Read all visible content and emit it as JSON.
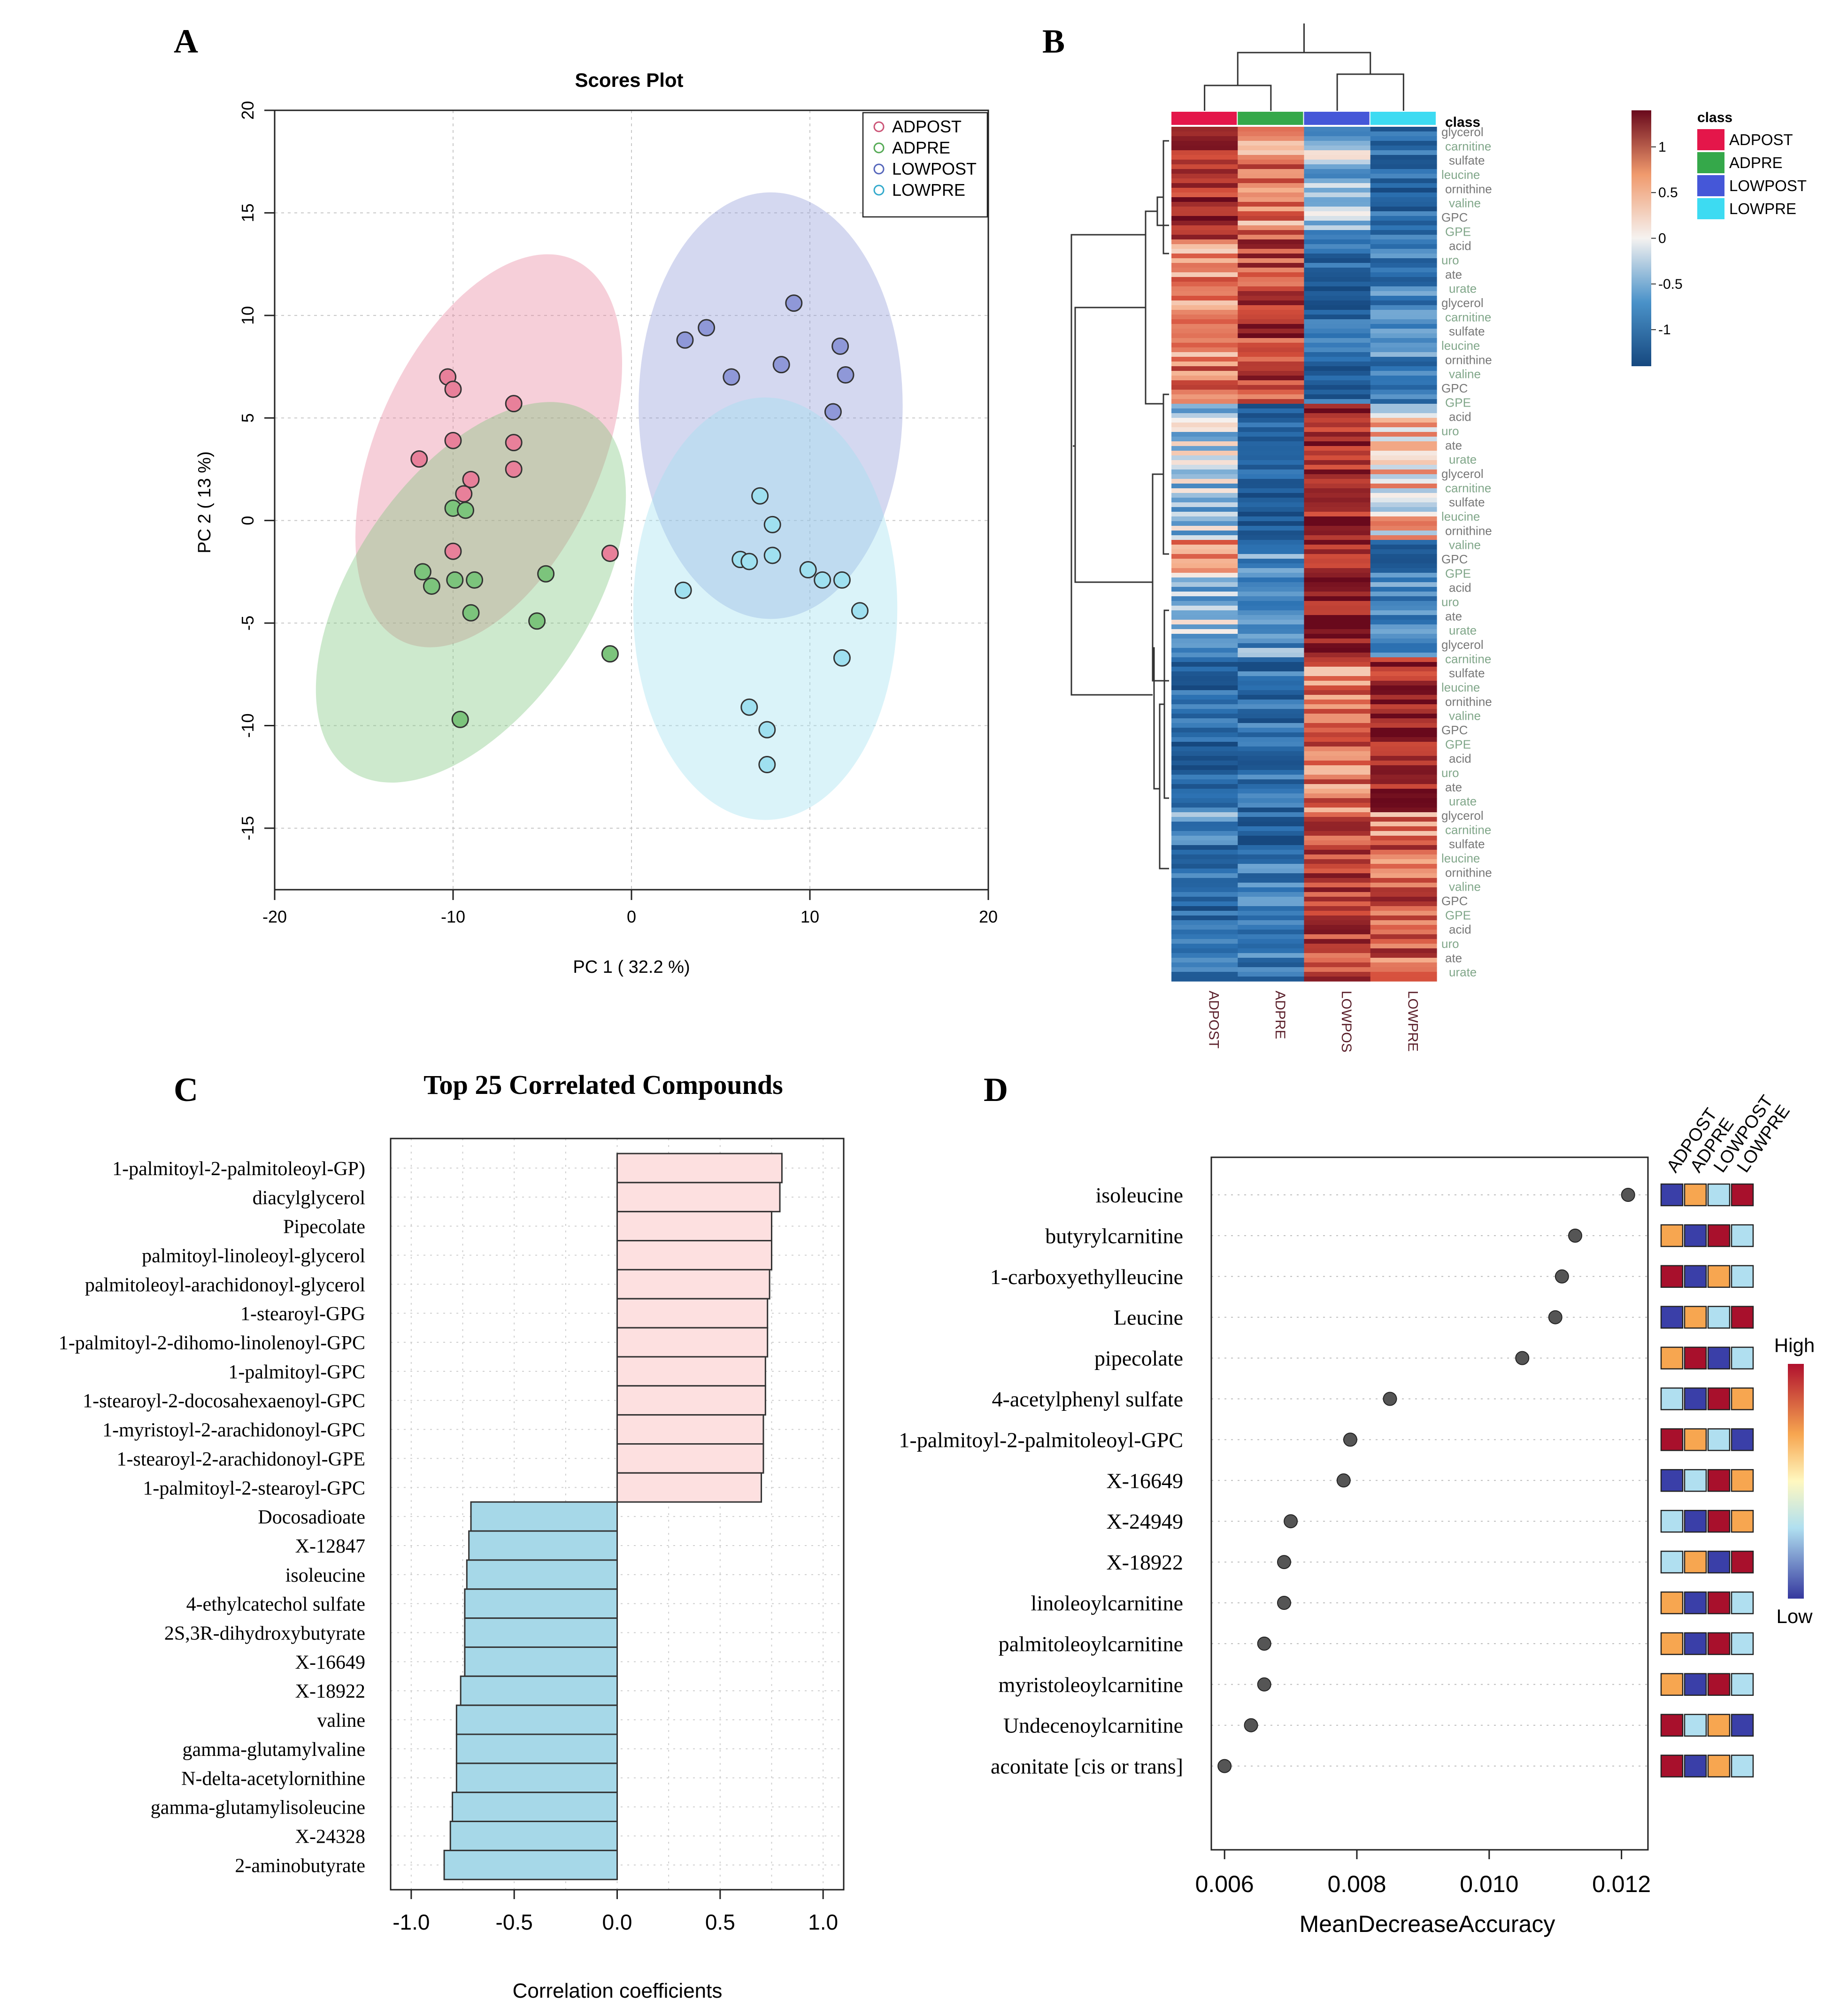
{
  "panels": {
    "a": "A",
    "b": "B",
    "c": "C",
    "d": "D"
  },
  "chart_data": [
    {
      "panel": "A",
      "type": "scatter",
      "title": "Scores Plot",
      "xlabel": "PC 1 ( 32.2 %)",
      "ylabel": "PC 2 ( 13 %)",
      "xlim": [
        -20,
        20
      ],
      "ylim": [
        -18,
        20
      ],
      "xticks": [
        "-20",
        "-10",
        "0",
        "10",
        "20"
      ],
      "yticks": [
        "-15",
        "-10",
        "-5",
        "0",
        "5",
        "10",
        "15",
        "20"
      ],
      "legend_position": "top-right",
      "series": [
        {
          "name": "ADPOST",
          "color": "#cc5577",
          "fill": "#e8809a",
          "ellipse": {
            "cx": -8.0,
            "cy": 3.4,
            "rx": 6.3,
            "ry": 10.2,
            "angle": 24
          },
          "points": [
            [
              -10.3,
              7.0
            ],
            [
              -10.0,
              6.4
            ],
            [
              -6.6,
              5.7
            ],
            [
              -6.6,
              3.8
            ],
            [
              -6.6,
              2.5
            ],
            [
              -10.0,
              3.9
            ],
            [
              -9.0,
              2.0
            ],
            [
              -9.4,
              1.3
            ],
            [
              -11.9,
              3.0
            ],
            [
              -10.0,
              -1.5
            ],
            [
              -1.2,
              -1.6
            ]
          ]
        },
        {
          "name": "ADPRE",
          "color": "#55aa55",
          "fill": "#7cc47c",
          "ellipse": {
            "cx": -9.0,
            "cy": -3.5,
            "rx": 6.6,
            "ry": 10.5,
            "angle": 34
          },
          "points": [
            [
              -10.0,
              0.6
            ],
            [
              -9.3,
              0.5
            ],
            [
              -11.7,
              -2.5
            ],
            [
              -11.2,
              -3.2
            ],
            [
              -9.9,
              -2.9
            ],
            [
              -8.8,
              -2.9
            ],
            [
              -4.8,
              -2.6
            ],
            [
              -9.0,
              -4.5
            ],
            [
              -5.3,
              -4.9
            ],
            [
              -1.2,
              -6.5
            ],
            [
              -9.6,
              -9.7
            ]
          ]
        },
        {
          "name": "LOWPOST",
          "color": "#5566bb",
          "fill": "#8f98d8",
          "ellipse": {
            "cx": 7.8,
            "cy": 5.6,
            "rx": 7.4,
            "ry": 10.4,
            "angle": 0
          },
          "points": [
            [
              9.1,
              10.6
            ],
            [
              3.0,
              8.8
            ],
            [
              4.2,
              9.4
            ],
            [
              11.7,
              8.5
            ],
            [
              12.0,
              7.1
            ],
            [
              5.6,
              7.0
            ],
            [
              8.4,
              7.6
            ],
            [
              11.3,
              5.3
            ]
          ]
        },
        {
          "name": "LOWPRE",
          "color": "#33aacc",
          "fill": "#9fe0f0",
          "ellipse": {
            "cx": 7.5,
            "cy": -4.3,
            "rx": 7.4,
            "ry": 10.3,
            "angle": 0
          },
          "points": [
            [
              7.2,
              1.2
            ],
            [
              7.9,
              -0.2
            ],
            [
              6.1,
              -1.9
            ],
            [
              6.6,
              -2.0
            ],
            [
              7.9,
              -1.7
            ],
            [
              9.9,
              -2.4
            ],
            [
              10.7,
              -2.9
            ],
            [
              11.8,
              -2.9
            ],
            [
              12.8,
              -4.4
            ],
            [
              2.9,
              -3.4
            ],
            [
              11.8,
              -6.7
            ],
            [
              6.6,
              -9.1
            ],
            [
              7.6,
              -10.2
            ],
            [
              7.6,
              -11.9
            ]
          ]
        }
      ]
    },
    {
      "panel": "B",
      "type": "heatmap",
      "columns": [
        "ADPOST",
        "ADPRE",
        "LOWPOS",
        "LOWPRE"
      ],
      "class_colors": [
        "#e4164a",
        "#35a84a",
        "#4557d8",
        "#3ddbf2"
      ],
      "annotation_label": "class",
      "legend_title": "class",
      "legend_items": [
        "ADPOST",
        "ADPRE",
        "LOWPOST",
        "LOWPRE"
      ],
      "color_scale_ticks": [
        "1",
        "0.5",
        "0",
        "-0.5",
        "-1"
      ],
      "color_range": [
        -1.4,
        1.4
      ]
    },
    {
      "panel": "C",
      "type": "bar",
      "orientation": "horizontal",
      "title": "Top 25 Correlated Compounds",
      "xlabel": "Correlation coefficients",
      "xlim": [
        -1.1,
        1.1
      ],
      "xticks": [
        "-1.0",
        "-0.5",
        "0.0",
        "0.5",
        "1.0"
      ],
      "positive_color": "#fde0e0",
      "negative_color": "#a6d8e8",
      "categories": [
        "1-palmitoyl-2-palmitoleoyl-GP)",
        "diacylglycerol",
        "Pipecolate",
        "palmitoyl-linoleoyl-glycerol",
        "palmitoleoyl-arachidonoyl-glycerol",
        "1-stearoyl-GPG",
        "1-palmitoyl-2-dihomo-linolenoyl-GPC",
        "1-palmitoyl-GPC",
        "1-stearoyl-2-docosahexaenoyl-GPC",
        "1-myristoyl-2-arachidonoyl-GPC",
        "1-stearoyl-2-arachidonoyl-GPE",
        "1-palmitoyl-2-stearoyl-GPC",
        "Docosadioate",
        "X-12847",
        "isoleucine",
        "4-ethylcatechol sulfate",
        "2S,3R-dihydroxybutyrate",
        "X-16649",
        "X-18922",
        "valine",
        "gamma-glutamylvaline",
        "N-delta-acetylornithine",
        "gamma-glutamylisoleucine",
        "X-24328",
        "2-aminobutyrate"
      ],
      "values": [
        0.8,
        0.79,
        0.75,
        0.75,
        0.74,
        0.73,
        0.73,
        0.72,
        0.72,
        0.71,
        0.71,
        0.7,
        -0.71,
        -0.72,
        -0.73,
        -0.74,
        -0.74,
        -0.74,
        -0.76,
        -0.78,
        -0.78,
        -0.78,
        -0.8,
        -0.81,
        -0.84
      ]
    },
    {
      "panel": "D",
      "type": "scatter",
      "subtype": "dotplot",
      "xlabel": "MeanDecreaseAccuracy",
      "xlim": [
        0.0058,
        0.0124
      ],
      "xticks": [
        "0.006",
        "0.008",
        "0.010",
        "0.012"
      ],
      "categories": [
        "isoleucine",
        "butyrylcarnitine",
        "1-carboxyethylleucine",
        "Leucine",
        "pipecolate",
        "4-acetylphenyl sulfate",
        "1-palmitoyl-2-palmitoleoyl-GPC",
        "X-16649",
        "X-24949",
        "X-18922",
        "linoleoylcarnitine",
        "palmitoleoylcarnitine",
        "myristoleoylcarnitine",
        "Undecenoylcarnitine",
        "aconitate [cis or trans]"
      ],
      "values": [
        0.0121,
        0.0113,
        0.0111,
        0.011,
        0.0105,
        0.0085,
        0.0079,
        0.0078,
        0.007,
        0.0069,
        0.0069,
        0.0066,
        0.0066,
        0.0064,
        0.006
      ],
      "group_labels": [
        "ADPOST",
        "ADPRE",
        "LOWPOST",
        "LOWPRE"
      ],
      "level_colors": {
        "low": "#3a3fa8",
        "midlow": "#b0dff0",
        "midhigh": "#f7a650",
        "high": "#a8102c"
      },
      "matrix": [
        [
          "low",
          "midhigh",
          "midlow",
          "high"
        ],
        [
          "midhigh",
          "low",
          "high",
          "midlow"
        ],
        [
          "high",
          "low",
          "midhigh",
          "midlow"
        ],
        [
          "low",
          "midhigh",
          "midlow",
          "high"
        ],
        [
          "midhigh",
          "high",
          "low",
          "midlow"
        ],
        [
          "midlow",
          "low",
          "high",
          "midhigh"
        ],
        [
          "high",
          "midhigh",
          "midlow",
          "low"
        ],
        [
          "low",
          "midlow",
          "high",
          "midhigh"
        ],
        [
          "midlow",
          "low",
          "high",
          "midhigh"
        ],
        [
          "midlow",
          "midhigh",
          "low",
          "high"
        ],
        [
          "midhigh",
          "low",
          "high",
          "midlow"
        ],
        [
          "midhigh",
          "low",
          "high",
          "midlow"
        ],
        [
          "midhigh",
          "low",
          "high",
          "midlow"
        ],
        [
          "high",
          "midlow",
          "midhigh",
          "low"
        ],
        [
          "high",
          "low",
          "midhigh",
          "midlow"
        ]
      ],
      "scale_high": "High",
      "scale_low": "Low"
    }
  ]
}
